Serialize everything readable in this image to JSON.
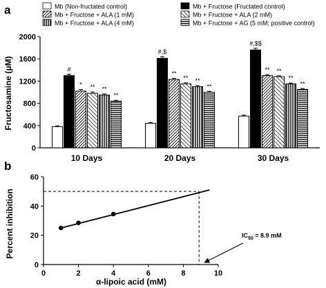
{
  "chart_data": [
    {
      "panel_label": "a",
      "type": "bar",
      "ylabel": "Fructosamine (μM)",
      "ylim": [
        0,
        2000
      ],
      "yticks": [
        "0",
        "400",
        "800",
        "1200",
        "1600",
        "2000"
      ],
      "categories": [
        "10 Days",
        "20 Days",
        "30 Days"
      ],
      "legend": {
        "placement": "top"
      },
      "series": [
        {
          "name": "Mb (Non-fructated control)",
          "pattern": "white",
          "values": [
            380,
            440,
            570
          ],
          "errors": [
            15,
            15,
            18
          ]
        },
        {
          "name": "Mb + Fructose (Fructated control)",
          "pattern": "black",
          "values": [
            1300,
            1610,
            1760
          ],
          "errors": [
            25,
            30,
            30
          ]
        },
        {
          "name": "Mb + Fructose + ALA (1 mM)",
          "pattern": "diagonal-dense",
          "values": [
            1020,
            1230,
            1300
          ],
          "errors": [
            30,
            20,
            15
          ]
        },
        {
          "name": "Mb + Fructose + ALA (2 mM)",
          "pattern": "diagonal",
          "values": [
            980,
            1150,
            1280
          ],
          "errors": [
            25,
            20,
            15
          ]
        },
        {
          "name": "Mb + Fructose + ALA (4 mM)",
          "pattern": "vertical",
          "values": [
            950,
            1100,
            1150
          ],
          "errors": [
            20,
            20,
            15
          ]
        },
        {
          "name": "Mb + Fructose + AG (5 mM; positive control)",
          "pattern": "horizontal",
          "values": [
            840,
            1000,
            1050
          ],
          "errors": [
            15,
            15,
            15
          ]
        }
      ],
      "annotations": [
        [
          "",
          "#",
          "*",
          "**",
          "**",
          "**"
        ],
        [
          "",
          "#,$",
          "**",
          "**",
          "**",
          "**"
        ],
        [
          "",
          "#,$$",
          "**",
          "**",
          "**",
          "**"
        ]
      ]
    },
    {
      "panel_label": "b",
      "type": "scatter",
      "xlabel": "α-lipoic acid (mM)",
      "ylabel": "Percent inhibition",
      "xlim": [
        0,
        10
      ],
      "ylim": [
        0,
        60
      ],
      "xticks": [
        "0",
        "2",
        "4",
        "6",
        "8",
        "10"
      ],
      "yticks": [
        "0",
        "20",
        "40",
        "60"
      ],
      "points": [
        {
          "x": 1,
          "y": 25
        },
        {
          "x": 2,
          "y": 28.5
        },
        {
          "x": 4,
          "y": 34.5
        }
      ],
      "fit_line": {
        "x": [
          1,
          9.5
        ],
        "y": [
          25,
          51
        ]
      },
      "ic50_annotation": {
        "prefix": "IC",
        "subscript": "50",
        "suffix": " = 8.9 mM",
        "x": 8.9,
        "y": 50
      }
    }
  ]
}
